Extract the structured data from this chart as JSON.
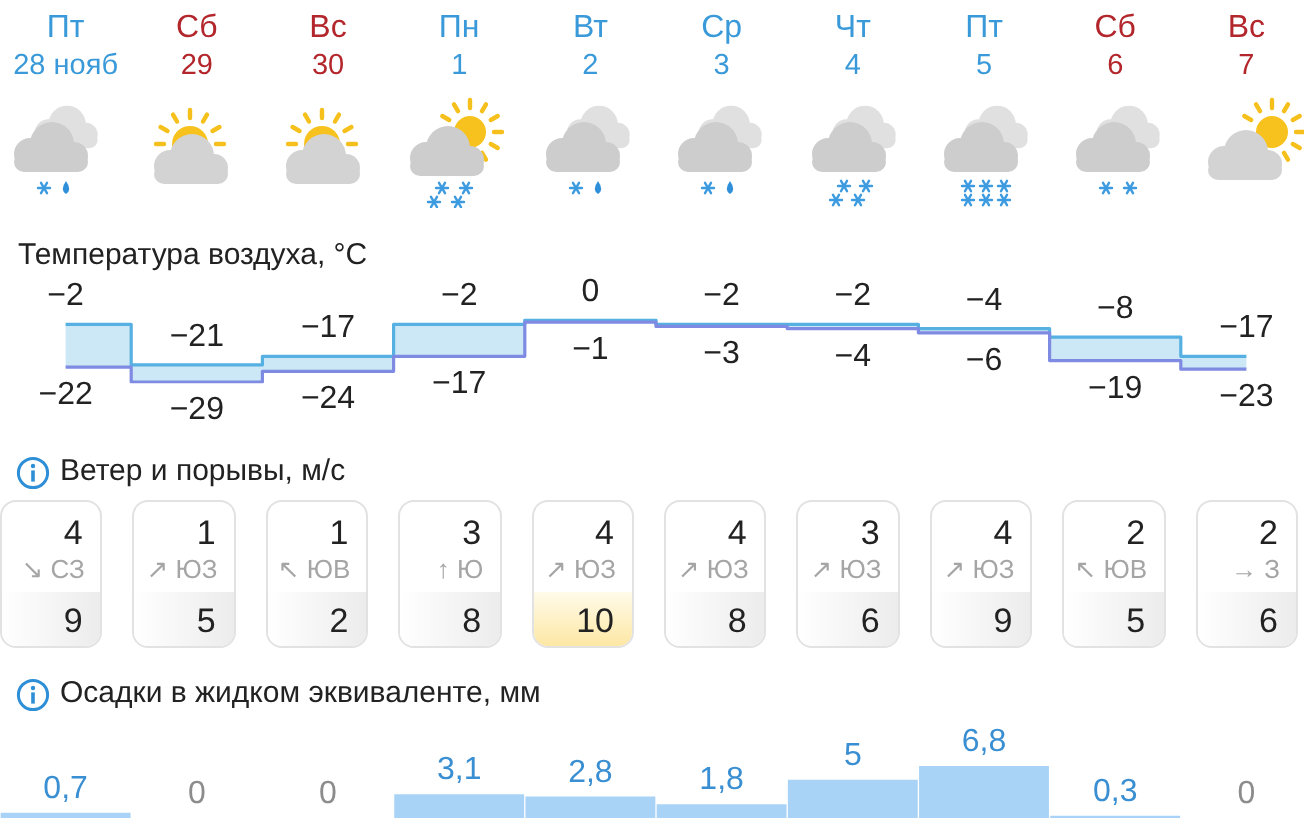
{
  "chart_data": [
    {
      "type": "step",
      "title": "Температура воздуха, °C",
      "categories": [
        "Пт\n28 нояб",
        "Сб\n29",
        "Вс\n30",
        "Пн\n1",
        "Вт\n2",
        "Ср\n3",
        "Чт\n4",
        "Пт\n5",
        "Сб\n6",
        "Вс\n7"
      ],
      "series": [
        {
          "color": "#56b0e2",
          "values": [
            -2,
            -21,
            -17,
            -2,
            0,
            -2,
            -2,
            -4,
            -8,
            -17
          ],
          "value_labels": [
            "−2",
            "−21",
            "−17",
            "−2",
            "0",
            "−2",
            "−2",
            "−4",
            "−8",
            "−17"
          ],
          "lower": [
            -22,
            -29,
            -24,
            -17,
            -1,
            -3,
            -4,
            -6,
            -19,
            -23
          ],
          "upper": [
            -2,
            -21,
            -17,
            -2,
            0,
            -2,
            -2,
            -4,
            -8,
            -17
          ]
        },
        {
          "color": "#7f8ae2",
          "values": [
            -22,
            -29,
            -24,
            -17,
            -1,
            -3,
            -4,
            -6,
            -19,
            -23
          ],
          "value_labels": [
            "−22",
            "−29",
            "−24",
            "−17",
            "−1",
            "−3",
            "−4",
            "−6",
            "−19",
            "−23"
          ]
        }
      ],
      "marker": "none",
      "tick_labels": "x"
    },
    {
      "type": "other",
      "title": "Ветер и порывы, м/с",
      "annotations": [
        "4",
        "↘ СЗ",
        "9",
        "1",
        "↗ ЮЗ",
        "5",
        "1",
        "↖ ЮВ",
        "2",
        "3",
        "↑ Ю",
        "8",
        "4",
        "↗ ЮЗ",
        "10",
        "4",
        "↗ ЮЗ",
        "8",
        "3",
        "↗ ЮЗ",
        "6",
        "4",
        "↗ ЮЗ",
        "9",
        "2",
        "↖ ЮВ",
        "5",
        "2",
        "→ З",
        "6"
      ]
    },
    {
      "type": "bar",
      "title": "Осадки в жидком эквиваленте, мм",
      "categories": [
        null,
        null,
        null,
        null,
        null,
        null,
        null,
        null,
        null,
        null
      ],
      "values": [
        0.7,
        0,
        0,
        3.1,
        2.8,
        1.8,
        5,
        6.8,
        0.3,
        0
      ],
      "value_labels": [
        "0,7",
        "0",
        "0",
        "3,1",
        "2,8",
        "1,8",
        "5",
        "6,8",
        "0,3",
        "0"
      ],
      "color": "#a8d3f6",
      "tick_labels": false
    }
  ]
}
